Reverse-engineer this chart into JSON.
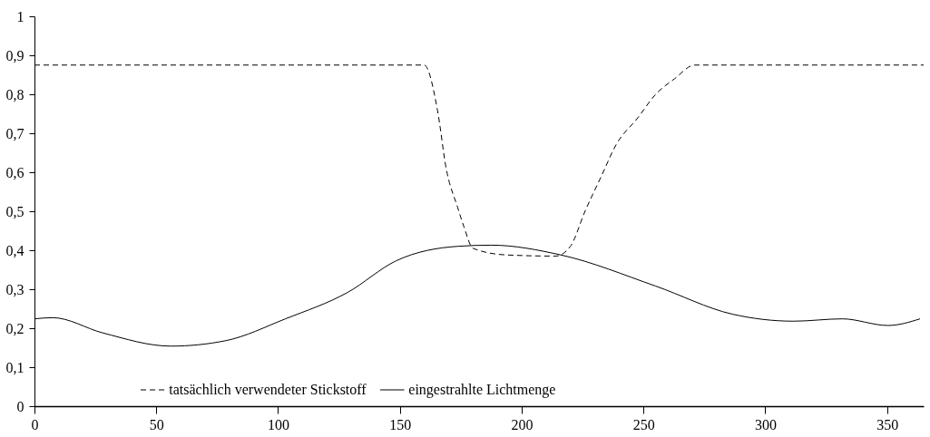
{
  "chart_data": {
    "type": "line",
    "xlim": [
      0,
      365
    ],
    "xticks": [
      0,
      50,
      100,
      150,
      200,
      250,
      300,
      350
    ],
    "ylim": [
      0,
      1
    ],
    "yticks": [
      {
        "value": 0,
        "label": "0"
      },
      {
        "value": 0.1,
        "label": "0,1"
      },
      {
        "value": 0.2,
        "label": "0,2"
      },
      {
        "value": 0.3,
        "label": "0,3"
      },
      {
        "value": 0.4,
        "label": "0,4"
      },
      {
        "value": 0.5,
        "label": "0,5"
      },
      {
        "value": 0.6,
        "label": "0,6"
      },
      {
        "value": 0.7,
        "label": "0,7"
      },
      {
        "value": 0.8,
        "label": "0,8"
      },
      {
        "value": 0.9,
        "label": "0,9"
      },
      {
        "value": 1,
        "label": "1"
      }
    ],
    "grid": false,
    "legend": "bottom",
    "marker": "none",
    "series": [
      {
        "name": "tatsächlich verwendeter Stickstoff",
        "color": "#000000",
        "line_style": "dashed",
        "x": [
          0,
          160,
          165.4,
          169,
          173.7,
          176.3,
          180,
          193.6,
          213.9,
          220,
          226,
          232.7,
          238.7,
          247.7,
          255,
          262.8,
          271,
          365
        ],
        "values": [
          0.875,
          0.875,
          0.76,
          0.61,
          0.51,
          0.46,
          0.405,
          0.388,
          0.385,
          0.41,
          0.5,
          0.59,
          0.67,
          0.74,
          0.8,
          0.84,
          0.875,
          0.875
        ]
      },
      {
        "name": "eingestrahlte Lichtmenge",
        "color": "#000000",
        "line_style": "solid",
        "x": [
          0,
          7.5,
          28,
          56,
          78.5,
          103,
          128.6,
          148.5,
          173.7,
          187.6,
          216,
          255,
          286.5,
          311.6,
          331.6,
          350.4,
          363.5
        ],
        "values": [
          0.224,
          0.227,
          0.188,
          0.154,
          0.168,
          0.224,
          0.292,
          0.373,
          0.41,
          0.413,
          0.388,
          0.308,
          0.236,
          0.218,
          0.224,
          0.207,
          0.224
        ]
      }
    ]
  }
}
